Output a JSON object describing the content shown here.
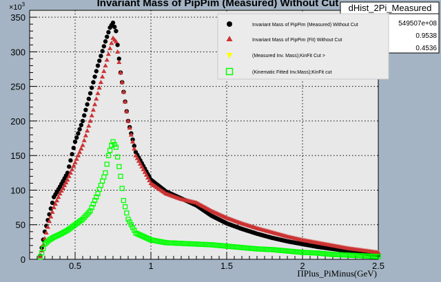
{
  "title": "Invariant Mass of PipPim (Measured) Without Cut",
  "stats_box": {
    "name": "dHist_2Pi_Measured",
    "rows": [
      "549507e+08",
      "0.9538",
      "0.4536"
    ]
  },
  "colors": {
    "measured": "#000000",
    "fit": "#cc3333",
    "measured_cut": "#ffff00",
    "kinfit_cut": "#00ff00",
    "frame_bg": "#e8e8e8",
    "page_bg": "#a4b4c4"
  },
  "chart_data": {
    "type": "scatter",
    "title": "Invariant Mass of PipPim (Measured) Without Cut",
    "xlabel": "ΠPlus_PiMinus(GeV)",
    "ylabel": "",
    "y_exponent_label": "×10",
    "y_exponent_power": "3",
    "xlim": [
      0.2,
      2.5
    ],
    "ylim": [
      0,
      360
    ],
    "x_ticks": [
      0.5,
      1,
      1.5,
      2,
      2.5
    ],
    "x_tick_labels": [
      "0.5",
      "1",
      "1.5",
      "2",
      "2.5"
    ],
    "y_ticks": [
      0,
      50,
      100,
      150,
      200,
      250,
      300,
      350
    ],
    "y_tick_labels": [
      "0",
      "50",
      "100",
      "150",
      "200",
      "250",
      "300",
      "350"
    ],
    "grid": true,
    "legend_position": "top-right",
    "series": [
      {
        "name": "Invariant Mass of PipPim (Measured) Without Cut",
        "marker": "circle",
        "x": [
          0.27,
          0.3,
          0.33,
          0.36,
          0.4,
          0.45,
          0.5,
          0.55,
          0.6,
          0.65,
          0.7,
          0.73,
          0.75,
          0.77,
          0.8,
          0.85,
          0.9,
          1.0,
          1.1,
          1.2,
          1.3,
          1.4,
          1.5,
          1.6,
          1.7,
          1.8,
          1.9,
          2.0,
          2.1,
          2.2,
          2.3,
          2.4,
          2.5
        ],
        "values": [
          5,
          40,
          65,
          90,
          105,
          125,
          170,
          200,
          240,
          280,
          315,
          335,
          342,
          330,
          270,
          200,
          155,
          115,
          98,
          88,
          78,
          63,
          52,
          44,
          37,
          31,
          26,
          22,
          18,
          15,
          12,
          9,
          6
        ]
      },
      {
        "name": "Invariant Mass of PipPim (Fit) Without Cut",
        "marker": "triangle",
        "x": [
          0.27,
          0.3,
          0.33,
          0.36,
          0.4,
          0.45,
          0.5,
          0.55,
          0.6,
          0.65,
          0.7,
          0.73,
          0.75,
          0.77,
          0.8,
          0.85,
          0.9,
          1.0,
          1.1,
          1.2,
          1.3,
          1.4,
          1.5,
          1.6,
          1.7,
          1.8,
          1.9,
          2.0,
          2.1,
          2.2,
          2.3,
          2.4,
          2.5
        ],
        "values": [
          4,
          30,
          55,
          75,
          95,
          115,
          140,
          165,
          200,
          240,
          280,
          305,
          320,
          315,
          270,
          200,
          150,
          110,
          95,
          87,
          82,
          70,
          60,
          52,
          45,
          39,
          33,
          28,
          24,
          20,
          16,
          13,
          10
        ]
      },
      {
        "name": "(Measured Inv. Mass);KinFit Cut >",
        "marker": "triangle-down",
        "x": [],
        "values": []
      },
      {
        "name": "(Kinematic Fitted Inv.Mass);KinFit cut",
        "marker": "open-square",
        "x": [
          0.27,
          0.3,
          0.33,
          0.36,
          0.4,
          0.45,
          0.5,
          0.55,
          0.6,
          0.65,
          0.7,
          0.72,
          0.74,
          0.75,
          0.77,
          0.8,
          0.82,
          0.85,
          0.9,
          1.0,
          1.1,
          1.2,
          1.3,
          1.4,
          1.5,
          1.6,
          1.7,
          1.8,
          1.9,
          2.0,
          2.1,
          2.2,
          2.3,
          2.4,
          2.5
        ],
        "values": [
          3,
          22,
          28,
          32,
          36,
          42,
          50,
          58,
          70,
          95,
          125,
          150,
          165,
          170,
          162,
          120,
          85,
          58,
          38,
          28,
          24,
          23,
          22,
          21,
          19,
          17,
          15,
          14,
          12,
          10,
          9,
          7,
          6,
          5,
          4
        ]
      }
    ]
  }
}
